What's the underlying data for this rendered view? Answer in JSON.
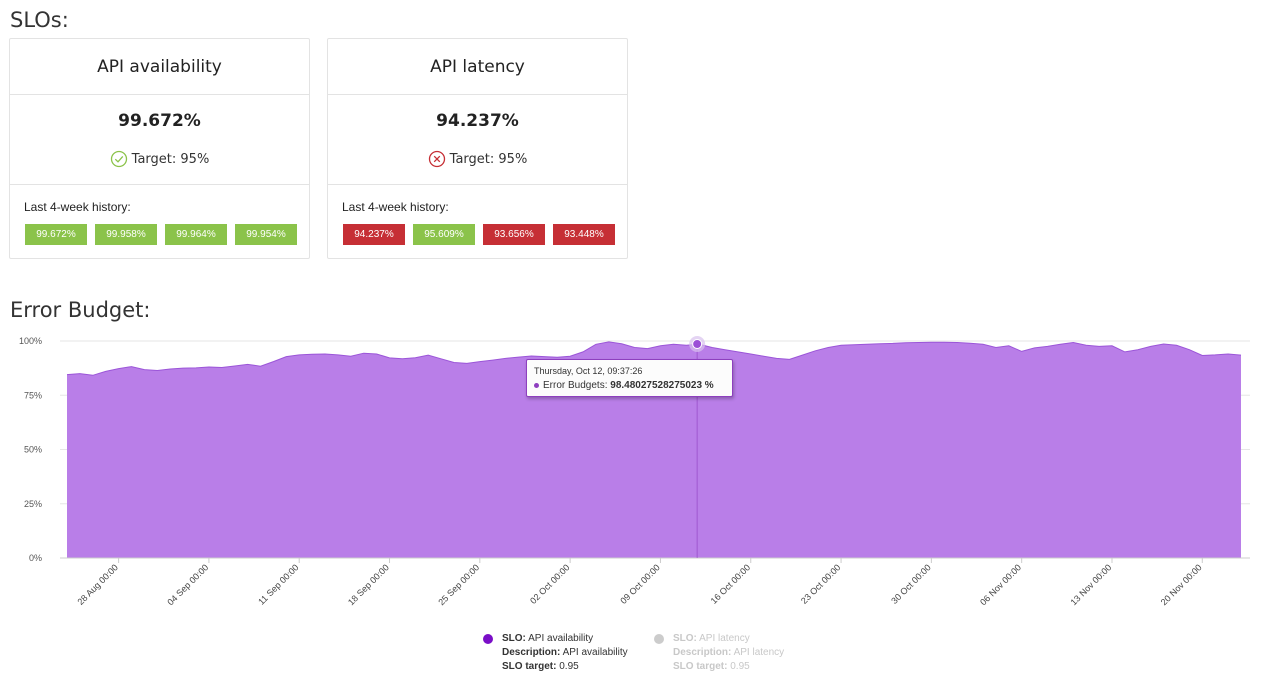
{
  "slos_title": "SLOs:",
  "error_budget_title": "Error Budget:",
  "cards": [
    {
      "name": "API availability",
      "value": "99.672%",
      "target": "Target: 95%",
      "status": "pass",
      "history_label": "Last 4-week history:",
      "history": [
        {
          "value": "99.672%",
          "color": "#8bc34a"
        },
        {
          "value": "99.958%",
          "color": "#8bc34a"
        },
        {
          "value": "99.964%",
          "color": "#8bc34a"
        },
        {
          "value": "99.954%",
          "color": "#8bc34a"
        }
      ]
    },
    {
      "name": "API latency",
      "value": "94.237%",
      "target": "Target: 95%",
      "status": "fail",
      "history_label": "Last 4-week history:",
      "history": [
        {
          "value": "94.237%",
          "color": "#c62f35"
        },
        {
          "value": "95.609%",
          "color": "#8bc34a"
        },
        {
          "value": "93.656%",
          "color": "#c62f35"
        },
        {
          "value": "93.448%",
          "color": "#c62f35"
        }
      ]
    }
  ],
  "colors": {
    "pass": "#8bc34a",
    "fail": "#c62f35",
    "area_fill": "#b97ee8",
    "area_line": "#9b55d8",
    "legend_active": "#7a0ec7",
    "legend_inactive": "#cccccc"
  },
  "tooltip": {
    "date": "Thursday, Oct 12, 09:37:26",
    "label": "Error Budgets:",
    "value": "98.48027528275023 %"
  },
  "legend": [
    {
      "slo_label": "SLO:",
      "slo": "API availability",
      "desc_label": "Description:",
      "desc": "API availability",
      "target_label": "SLO target:",
      "target": "0.95",
      "active": true
    },
    {
      "slo_label": "SLO:",
      "slo": "API latency",
      "desc_label": "Description:",
      "desc": "API latency",
      "target_label": "SLO target:",
      "target": "0.95",
      "active": false
    }
  ],
  "chart_data": {
    "type": "area",
    "title": "Error Budget:",
    "ylim": [
      0,
      100
    ],
    "y_ticks": [
      "100%",
      "75%",
      "50%",
      "25%",
      "0%"
    ],
    "x_ticks": [
      "28 Aug 00:00",
      "04 Sep 00:00",
      "11 Sep 00:00",
      "18 Sep 00:00",
      "25 Sep 00:00",
      "02 Oct 00:00",
      "09 Oct 00:00",
      "16 Oct 00:00",
      "23 Oct 00:00",
      "30 Oct 00:00",
      "06 Nov 00:00",
      "13 Nov 00:00",
      "20 Nov 00:00"
    ],
    "x_range": [
      "2023-08-24",
      "2023-11-23"
    ],
    "grid": true,
    "series": [
      {
        "name": "API availability",
        "x": [
          "2023-08-24",
          "2023-08-25",
          "2023-08-26",
          "2023-08-27",
          "2023-08-28",
          "2023-08-29",
          "2023-08-30",
          "2023-08-31",
          "2023-09-01",
          "2023-09-02",
          "2023-09-03",
          "2023-09-04",
          "2023-09-05",
          "2023-09-06",
          "2023-09-07",
          "2023-09-08",
          "2023-09-09",
          "2023-09-10",
          "2023-09-11",
          "2023-09-12",
          "2023-09-13",
          "2023-09-14",
          "2023-09-15",
          "2023-09-16",
          "2023-09-17",
          "2023-09-18",
          "2023-09-19",
          "2023-09-20",
          "2023-09-21",
          "2023-09-22",
          "2023-09-23",
          "2023-09-24",
          "2023-09-25",
          "2023-09-26",
          "2023-09-27",
          "2023-09-28",
          "2023-09-29",
          "2023-09-30",
          "2023-10-01",
          "2023-10-02",
          "2023-10-03",
          "2023-10-04",
          "2023-10-05",
          "2023-10-06",
          "2023-10-07",
          "2023-10-08",
          "2023-10-09",
          "2023-10-10",
          "2023-10-11",
          "2023-10-12",
          "2023-10-13",
          "2023-10-14",
          "2023-10-15",
          "2023-10-16",
          "2023-10-17",
          "2023-10-18",
          "2023-10-19",
          "2023-10-20",
          "2023-10-21",
          "2023-10-22",
          "2023-10-23",
          "2023-10-24",
          "2023-10-25",
          "2023-10-26",
          "2023-10-27",
          "2023-10-28",
          "2023-10-29",
          "2023-10-30",
          "2023-10-31",
          "2023-11-01",
          "2023-11-02",
          "2023-11-03",
          "2023-11-04",
          "2023-11-05",
          "2023-11-06",
          "2023-11-07",
          "2023-11-08",
          "2023-11-09",
          "2023-11-10",
          "2023-11-11",
          "2023-11-12",
          "2023-11-13",
          "2023-11-14",
          "2023-11-15",
          "2023-11-16",
          "2023-11-17",
          "2023-11-18",
          "2023-11-19",
          "2023-11-20",
          "2023-11-21",
          "2023-11-22",
          "2023-11-23"
        ],
        "y": [
          84.5,
          85.0,
          84.2,
          86.0,
          87.3,
          88.2,
          86.8,
          86.4,
          87.1,
          87.5,
          87.6,
          88.0,
          87.8,
          88.5,
          89.2,
          88.4,
          90.5,
          92.8,
          93.6,
          93.9,
          94.0,
          93.6,
          93.0,
          94.4,
          94.0,
          92.2,
          91.8,
          92.3,
          93.5,
          91.8,
          90.1,
          89.7,
          90.5,
          91.2,
          92.0,
          92.6,
          93.1,
          92.8,
          92.5,
          93.0,
          95.0,
          98.5,
          99.6,
          98.7,
          97.0,
          96.5,
          97.8,
          98.5,
          98.0,
          98.48,
          97.0,
          96.0,
          95.0,
          94.0,
          93.0,
          92.0,
          91.5,
          93.5,
          95.5,
          97.0,
          98.0,
          98.3,
          98.5,
          98.7,
          98.9,
          99.2,
          99.3,
          99.4,
          99.4,
          99.3,
          99.0,
          98.5,
          97.0,
          97.8,
          95.2,
          96.8,
          97.5,
          98.5,
          99.3,
          98.0,
          97.5,
          97.8,
          95.0,
          96.0,
          97.5,
          98.6,
          98.0,
          96.0,
          93.3,
          93.6,
          94.0,
          93.5
        ]
      }
    ]
  }
}
